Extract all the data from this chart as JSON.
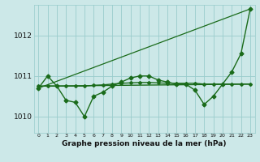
{
  "bg_color": "#cce8e8",
  "grid_color": "#99cccc",
  "line_color": "#1a6b1a",
  "xlabel": "Graphe pression niveau de la mer (hPa)",
  "ylim": [
    1009.6,
    1012.75
  ],
  "xlim": [
    -0.5,
    23.5
  ],
  "yticks": [
    1010,
    1011,
    1012
  ],
  "xticks": [
    0,
    1,
    2,
    3,
    4,
    5,
    6,
    7,
    8,
    9,
    10,
    11,
    12,
    13,
    14,
    15,
    16,
    17,
    18,
    19,
    20,
    21,
    22,
    23
  ],
  "series_wavy": {
    "x": [
      0,
      1,
      2,
      3,
      4,
      5,
      6,
      7,
      8,
      9,
      10,
      11,
      12,
      13,
      14,
      15,
      16,
      17,
      18,
      19,
      20,
      21,
      22,
      23
    ],
    "y": [
      1010.7,
      1011.0,
      1010.75,
      1010.4,
      1010.35,
      1010.0,
      1010.5,
      1010.6,
      1010.75,
      1010.85,
      1010.95,
      1011.0,
      1011.0,
      1010.9,
      1010.85,
      1010.8,
      1010.8,
      1010.65,
      1010.3,
      1010.5,
      1010.8,
      1011.1,
      1011.55,
      1012.65
    ],
    "linewidth": 1.0,
    "markersize": 2.5
  },
  "series_flat": {
    "x": [
      0,
      23
    ],
    "y": [
      1010.75,
      1010.8
    ],
    "linewidth": 1.0
  },
  "series_trend": {
    "x": [
      0,
      23
    ],
    "y": [
      1010.7,
      1012.65
    ],
    "linewidth": 0.9
  },
  "series_smooth": {
    "x": [
      0,
      1,
      2,
      3,
      4,
      5,
      6,
      7,
      8,
      9,
      10,
      11,
      12,
      13,
      14,
      15,
      16,
      17,
      18,
      19,
      20,
      21,
      22,
      23
    ],
    "y": [
      1010.75,
      1010.75,
      1010.75,
      1010.75,
      1010.75,
      1010.75,
      1010.77,
      1010.78,
      1010.8,
      1010.82,
      1010.83,
      1010.84,
      1010.84,
      1010.83,
      1010.82,
      1010.82,
      1010.82,
      1010.82,
      1010.8,
      1010.8,
      1010.8,
      1010.8,
      1010.8,
      1010.8
    ],
    "linewidth": 1.0,
    "markersize": 2.0
  }
}
